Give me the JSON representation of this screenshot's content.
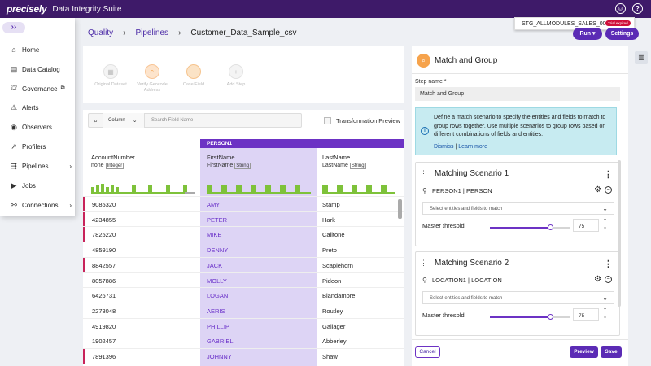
{
  "topbar": {
    "brand": "precisely",
    "suite": "Data Integrity Suite",
    "user_icon": "user-icon",
    "help_icon": "help-icon"
  },
  "env": {
    "name": "STG_ALLMODULES_SALES_001",
    "trial": "Trial expired"
  },
  "leftnav": {
    "expand_icon": "chevron-double-right-icon",
    "items": [
      {
        "label": "Home",
        "icon": "home-icon"
      },
      {
        "label": "Data Catalog",
        "icon": "catalog-icon"
      },
      {
        "label": "Governance",
        "icon": "governance-icon",
        "external": true
      },
      {
        "label": "Alerts",
        "icon": "alert-icon"
      },
      {
        "label": "Observers",
        "icon": "eye-icon"
      },
      {
        "label": "Profilers",
        "icon": "trend-icon"
      },
      {
        "label": "Pipelines",
        "icon": "pipeline-icon",
        "submenu": true
      },
      {
        "label": "Jobs",
        "icon": "jobs-icon"
      },
      {
        "label": "Connections",
        "icon": "connections-icon",
        "submenu": true
      }
    ]
  },
  "breadcrumb": {
    "items": [
      "Quality",
      "Pipelines",
      "Customer_Data_Sample_csv"
    ]
  },
  "toolbar": {
    "run_label": "Run",
    "settings_label": "Settings"
  },
  "flow": {
    "count_label": "",
    "steps": [
      "Original Dataset",
      "Verify Geocode Address",
      "Case Field",
      "Add Step"
    ]
  },
  "grid": {
    "search": {
      "column_label": "Column",
      "placeholder": "Search Field Name"
    },
    "transformation_preview": "Transformation Preview",
    "group_header": "PERSON1",
    "columns": [
      {
        "name": "AccountNumber",
        "semantic": "none",
        "type": "Integer"
      },
      {
        "name": "FirstName",
        "semantic": "FirstName",
        "type": "String"
      },
      {
        "name": "LastName",
        "semantic": "LastName",
        "type": "String"
      }
    ],
    "rows": [
      {
        "acc": "9085320",
        "fn": "AMY",
        "ln": "Stamp",
        "flag": true
      },
      {
        "acc": "4234855",
        "fn": "PETER",
        "ln": "Hark",
        "flag": true
      },
      {
        "acc": "7825220",
        "fn": "MIKE",
        "ln": "Calltone",
        "flag": true
      },
      {
        "acc": "4859190",
        "fn": "DENNY",
        "ln": "Preto",
        "flag": false
      },
      {
        "acc": "8842557",
        "fn": "JACK",
        "ln": "Scaplehorn",
        "flag": true
      },
      {
        "acc": "8057886",
        "fn": "MOLLY",
        "ln": "Pideon",
        "flag": false
      },
      {
        "acc": "6426731",
        "fn": "LOGAN",
        "ln": "Blandamore",
        "flag": false
      },
      {
        "acc": "2278048",
        "fn": "AERIS",
        "ln": "Routley",
        "flag": false
      },
      {
        "acc": "4919820",
        "fn": "PHILLIP",
        "ln": "Gallager",
        "flag": false
      },
      {
        "acc": "1902457",
        "fn": "GABRIEL",
        "ln": "Abberley",
        "flag": false
      },
      {
        "acc": "7891396",
        "fn": "JOHNNY",
        "ln": "Shaw",
        "flag": true
      }
    ]
  },
  "panel": {
    "title": "Match and Group",
    "step_name_label": "Step name *",
    "step_name_value": "Match and Group",
    "info_text": "Define a match scenario to specify the entities and fields to match to group rows together. Use multiple scenarios to group rows based on different combinations of fields and entities.",
    "dismiss": "Dismiss",
    "learn_more": "Learn more",
    "scenarios": [
      {
        "title": "Matching Scenario 1",
        "entity": "PERSON1 | PERSON",
        "select_placeholder": "Select entities and fields to match",
        "threshold_label": "Master thresold",
        "threshold_value": "75",
        "threshold_fraction": 0.75
      },
      {
        "title": "Matching Scenario 2",
        "entity": "LOCATION1 | LOCATION",
        "select_placeholder": "Select entities and fields to match",
        "threshold_label": "Master thresold",
        "threshold_value": "75",
        "threshold_fraction": 0.75
      }
    ],
    "cancel": "Cancel",
    "preview": "Preview",
    "save": "Save"
  },
  "colors": {
    "brand": "#3e1a69",
    "accent": "#5b2bb5",
    "highlight": "#ddd4f5",
    "flag": "#c8235a",
    "profile_bar": "#7ec23a"
  }
}
